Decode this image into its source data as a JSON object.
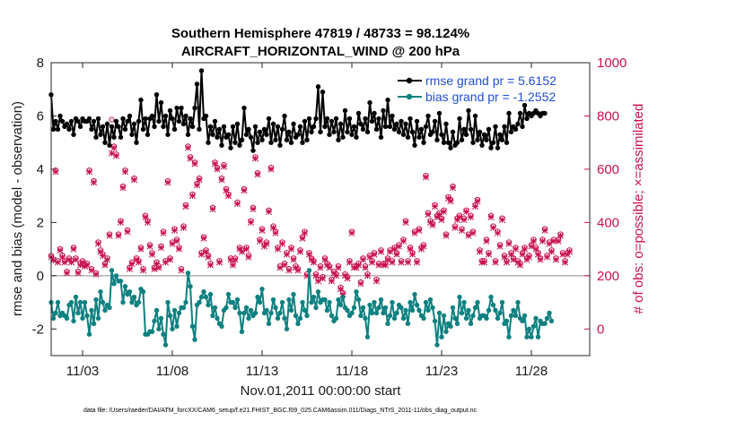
{
  "chart_data": {
    "type": "line",
    "title": "Southern Hemisphere 47819 / 48733 = 98.124%",
    "subtitle": "AIRCRAFT_HORIZONTAL_WIND @ 200 hPa",
    "xlabel": "Nov.01,2011 00:00:00 start",
    "ylabel_left": "rmse and bias (model - observation)",
    "ylabel_right": "# of obs: o=possible; ×=assimilated",
    "xlim": [
      0.25,
      30.25
    ],
    "ylim_left": [
      -3,
      8
    ],
    "ylim_right": [
      -100,
      1000
    ],
    "x_ticks": [
      2,
      7,
      12,
      17,
      22,
      27
    ],
    "x_tick_labels": [
      "11/03",
      "11/08",
      "11/13",
      "11/18",
      "11/23",
      "11/28"
    ],
    "y_ticks_left": [
      -2,
      0,
      2,
      4,
      6,
      8
    ],
    "y_tick_labels_left": [
      "-2",
      "0",
      "2",
      "4",
      "6",
      "8"
    ],
    "y_ticks_right": [
      0,
      200,
      400,
      600,
      800,
      1000
    ],
    "y_tick_labels_right": [
      "0",
      "200",
      "400",
      "600",
      "800",
      "1000"
    ],
    "zero_line": 0,
    "footnote": "data file: /Users/raeder/DAI/ATM_forcXX/CAM6_setup/f.e21.FHIST_BGC.f09_025.CAM6assim.011/Diags_NTrS_2011-11/obs_diag_output.nc",
    "legend": {
      "position": "top-right",
      "entries": [
        "rmse grand pr = 5.6152",
        "bias grand pr = -1.2552"
      ]
    },
    "colors": {
      "rmse": "#000000",
      "bias": "#0e8080",
      "obs": "#c8104e",
      "legend_text": "#1f4ed8",
      "zero_line": "#aaaaaa"
    },
    "x_start": 0.25,
    "x_step": 0.125,
    "series": [
      {
        "name": "rmse",
        "values": [
          6.8,
          5.5,
          5.8,
          5.5,
          6.0,
          5.8,
          5.6,
          5.7,
          5.5,
          5.8,
          5.3,
          5.9,
          5.8,
          5.6,
          5.9,
          5.8,
          5.8,
          5.9,
          5.5,
          5.8,
          5.2,
          5.9,
          5.3,
          5.6,
          5.0,
          5.7,
          4.9,
          5.6,
          5.2,
          5.8,
          5.6,
          5.2,
          5.9,
          5.5,
          5.8,
          6.0,
          5.3,
          5.7,
          5.0,
          5.8,
          6.6,
          5.5,
          5.9,
          5.3,
          5.9,
          6.0,
          5.6,
          6.8,
          5.8,
          6.5,
          5.6,
          6.0,
          5.3,
          6.2,
          5.9,
          5.5,
          6.3,
          5.8,
          6.3,
          5.7,
          6.0,
          5.3,
          5.9,
          5.6,
          6.3,
          7.2,
          5.5,
          7.7,
          5.9,
          6.0,
          5.0,
          5.6,
          5.3,
          5.8,
          5.2,
          5.5,
          4.9,
          5.6,
          5.2,
          5.3,
          4.8,
          5.6,
          5.0,
          5.7,
          4.9,
          5.1,
          6.3,
          5.3,
          5.5,
          5.2,
          4.7,
          5.6,
          5.0,
          5.4,
          5.1,
          5.5,
          5.3,
          5.9,
          5.0,
          5.7,
          5.1,
          5.6,
          4.9,
          5.5,
          6.0,
          5.1,
          5.4,
          5.0,
          5.7,
          5.2,
          5.3,
          5.6,
          5.0,
          5.8,
          5.1,
          5.9,
          5.4,
          5.6,
          5.9,
          7.1,
          5.4,
          6.9,
          5.6,
          5.9,
          5.3,
          5.8,
          5.4,
          5.9,
          5.1,
          5.7,
          5.2,
          6.2,
          5.4,
          5.9,
          5.3,
          5.6,
          5.2,
          6.1,
          5.7,
          5.5,
          5.9,
          5.4,
          6.5,
          5.8,
          6.1,
          5.5,
          5.9,
          5.2,
          6.2,
          5.6,
          6.6,
          5.6,
          6.0,
          5.5,
          5.7,
          5.4,
          5.8,
          5.3,
          5.7,
          5.2,
          5.9,
          5.4,
          4.9,
          5.8,
          5.2,
          5.5,
          5.0,
          5.6,
          6.0,
          5.3,
          5.4,
          5.8,
          5.1,
          6.1,
          5.3,
          5.0,
          5.7,
          5.0,
          4.8,
          5.4,
          4.9,
          5.0,
          5.9,
          5.1,
          5.5,
          5.3,
          6.2,
          5.5,
          5.0,
          6.0,
          5.1,
          5.4,
          4.9,
          5.3,
          5.1,
          5.5,
          4.8,
          5.0,
          5.6,
          4.8,
          5.3,
          5.1,
          5.6,
          5.0,
          6.1,
          5.4,
          5.6,
          5.5,
          5.7,
          6.1,
          5.6,
          6.4,
          5.9,
          6.1,
          6.0,
          6.1,
          6.2,
          6.1,
          6.0,
          6.1,
          6.1
        ]
      },
      {
        "name": "bias",
        "values": [
          -1.0,
          -1.6,
          -1.4,
          -1.0,
          -1.5,
          -1.4,
          -1.5,
          -1.6,
          -1.1,
          -1.0,
          -1.7,
          -0.8,
          -1.4,
          -1.0,
          -1.6,
          -1.0,
          -1.5,
          -2.2,
          -1.3,
          -1.8,
          -0.9,
          -1.6,
          -0.6,
          -1.0,
          -1.3,
          -1.1,
          -1.2,
          0.2,
          -0.3,
          0.0,
          -0.2,
          -0.2,
          -1.0,
          -0.4,
          -0.7,
          -0.6,
          -1.0,
          -0.8,
          -1.1,
          -1.0,
          -0.5,
          -0.6,
          -2.2,
          -2.2,
          -2.1,
          -2.1,
          -1.7,
          -1.3,
          -2.0,
          -1.6,
          -2.2,
          -2.6,
          -1.0,
          -1.5,
          -2.0,
          -1.3,
          -1.9,
          -1.4,
          -1.2,
          -1.2,
          -1.0,
          0.1,
          -0.4,
          -1.9,
          -2.4,
          -1.1,
          -1.0,
          -0.8,
          -0.6,
          -0.8,
          -1.1,
          -0.7,
          -1.5,
          -1.2,
          -1.6,
          -1.8,
          -1.9,
          -1.3,
          -1.2,
          -0.7,
          -1.0,
          -1.0,
          -1.2,
          -0.9,
          -1.4,
          -2.1,
          -1.4,
          -1.2,
          -1.6,
          -1.3,
          -1.5,
          -1.4,
          -0.8,
          -1.0,
          -0.5,
          -1.4,
          -1.3,
          -1.8,
          -1.4,
          -0.9,
          -1.2,
          -1.6,
          -1.4,
          -1.0,
          -1.6,
          -2.0,
          -0.9,
          -1.3,
          -0.7,
          -1.5,
          -1.8,
          -1.6,
          -1.0,
          -1.3,
          -1.5,
          0.2,
          -1.0,
          -0.8,
          -1.2,
          -0.6,
          -1.0,
          -0.9,
          -0.9,
          -1.3,
          -1.0,
          -1.5,
          -1.7,
          -1.6,
          -0.9,
          -1.1,
          -0.8,
          -1.2,
          -1.3,
          -1.5,
          -1.4,
          -1.2,
          -0.6,
          -0.9,
          -1.5,
          -1.2,
          -1.6,
          -2.3,
          -1.1,
          -1.4,
          -1.0,
          -1.4,
          -1.2,
          -0.9,
          -1.4,
          -1.2,
          -1.8,
          -1.5,
          -1.0,
          -1.6,
          -1.4,
          -1.1,
          -1.2,
          -1.6,
          -1.3,
          -1.8,
          -1.0,
          -1.3,
          -0.7,
          -1.1,
          -1.3,
          -1.5,
          -1.6,
          -1.0,
          -1.3,
          -0.9,
          -1.2,
          -1.7,
          -2.6,
          -1.4,
          -2.3,
          -1.5,
          -2.1,
          -1.8,
          -1.9,
          -1.2,
          -1.6,
          -1.8,
          -0.8,
          -1.4,
          -1.0,
          -1.6,
          -1.3,
          -1.8,
          -1.5,
          -1.2,
          -1.0,
          -1.6,
          -1.5,
          -1.5,
          -1.6,
          -1.3,
          -0.8,
          -1.1,
          -1.3,
          -1.6,
          -1.4,
          -1.0,
          -1.8,
          -1.7,
          -2.3,
          -1.5,
          -1.3,
          -1.5,
          -1.0,
          -1.6,
          -1.7,
          -1.5,
          -2.3,
          -2.0,
          -2.3,
          -1.9,
          -1.6,
          -2.3,
          -1.7,
          -1.8,
          -1.8,
          -1.6,
          -1.4,
          -1.7
        ]
      },
      {
        "name": "obs_assimilated",
        "values": [
          270,
          258,
          590,
          250,
          295,
          270,
          250,
          210,
          260,
          250,
          300,
          260,
          210,
          240,
          250,
          235,
          240,
          590,
          220,
          550,
          205,
          320,
          290,
          275,
          240,
          260,
          350,
          660,
          680,
          650,
          350,
          400,
          530,
          590,
          365,
          225,
          245,
          560,
          260,
          250,
          300,
          220,
          420,
          400,
          310,
          280,
          225,
          245,
          230,
          305,
          360,
          250,
          550,
          260,
          320,
          370,
          330,
          300,
          220,
          380,
          460,
          680,
          640,
          500,
          620,
          540,
          560,
          280,
          340,
          290,
          270,
          240,
          450,
          620,
          600,
          250,
          560,
          610,
          520,
          500,
          260,
          240,
          260,
          470,
          300,
          290,
          520,
          300,
          270,
          400,
          450,
          640,
          580,
          330,
          370,
          310,
          320,
          440,
          600,
          380,
          360,
          300,
          230,
          320,
          240,
          280,
          220,
          300,
          260,
          230,
          220,
          290,
          340,
          360,
          200,
          280,
          260,
          250,
          200,
          180,
          230,
          190,
          260,
          240,
          230,
          180,
          210,
          200,
          230,
          150,
          130,
          200,
          190,
          250,
          360,
          230,
          230,
          240,
          170,
          260,
          230,
          200,
          270,
          250,
          280,
          180,
          240,
          290,
          240,
          240,
          260,
          290,
          250,
          300,
          280,
          310,
          250,
          330,
          400,
          250,
          300,
          280,
          360,
          250,
          370,
          300,
          310,
          570,
          430,
          400,
          390,
          460,
          420,
          430,
          410,
          440,
          350,
          490,
          480,
          530,
          380,
          410,
          420,
          370,
          410,
          440,
          350,
          420,
          360,
          460,
          480,
          290,
          250,
          250,
          330,
          280,
          420,
          380,
          250,
          360,
          310,
          410,
          270,
          250,
          320,
          280,
          260,
          300,
          250,
          240,
          280,
          300,
          260,
          270,
          310,
          330,
          300,
          280,
          260,
          330,
          370,
          270,
          320,
          290,
          330,
          260,
          330,
          350,
          280,
          250,
          280,
          290
        ]
      },
      {
        "name": "obs_possible",
        "values": [
          275,
          262,
          596,
          256,
          301,
          276,
          256,
          216,
          266,
          256,
          306,
          266,
          216,
          246,
          256,
          241,
          246,
          596,
          226,
          556,
          211,
          326,
          296,
          281,
          246,
          266,
          356,
          786,
          686,
          656,
          356,
          406,
          536,
          596,
          371,
          231,
          251,
          566,
          266,
          256,
          306,
          226,
          426,
          406,
          316,
          286,
          231,
          251,
          236,
          311,
          366,
          256,
          556,
          266,
          326,
          376,
          336,
          306,
          226,
          386,
          466,
          686,
          646,
          506,
          626,
          546,
          566,
          286,
          346,
          296,
          276,
          246,
          456,
          626,
          606,
          256,
          566,
          616,
          526,
          506,
          266,
          246,
          266,
          476,
          306,
          296,
          526,
          306,
          276,
          406,
          456,
          646,
          586,
          336,
          376,
          316,
          326,
          446,
          606,
          386,
          366,
          306,
          236,
          326,
          246,
          286,
          226,
          306,
          266,
          236,
          226,
          296,
          346,
          366,
          206,
          286,
          266,
          256,
          206,
          186,
          236,
          196,
          266,
          246,
          236,
          186,
          216,
          206,
          236,
          156,
          136,
          206,
          196,
          256,
          366,
          236,
          236,
          246,
          176,
          266,
          236,
          206,
          276,
          256,
          286,
          186,
          246,
          296,
          246,
          246,
          266,
          296,
          256,
          306,
          286,
          316,
          256,
          336,
          406,
          256,
          306,
          286,
          366,
          256,
          376,
          306,
          316,
          576,
          436,
          406,
          396,
          466,
          426,
          436,
          416,
          446,
          356,
          496,
          486,
          536,
          386,
          416,
          426,
          376,
          416,
          446,
          356,
          426,
          366,
          466,
          486,
          296,
          256,
          256,
          336,
          286,
          426,
          386,
          256,
          366,
          316,
          416,
          276,
          256,
          326,
          286,
          266,
          306,
          256,
          246,
          286,
          306,
          266,
          276,
          316,
          336,
          306,
          286,
          266,
          336,
          376,
          276,
          326,
          296,
          336,
          266,
          336,
          356,
          286,
          256,
          286,
          296
        ]
      }
    ]
  }
}
